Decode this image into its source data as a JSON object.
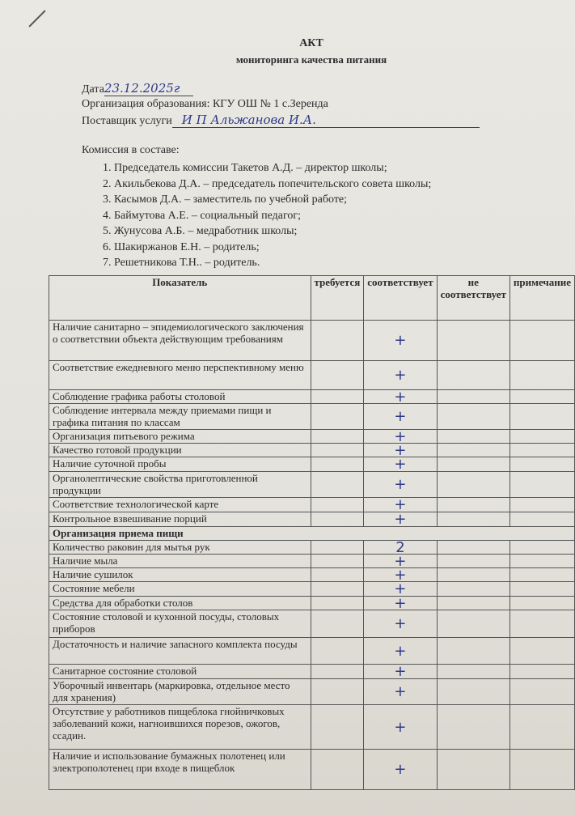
{
  "title": "АКТ",
  "subtitle": "мониторинга качества питания",
  "date_label": "Дата",
  "date_value": "23.12.2025г",
  "organization": "Организация образования: КГУ ОШ № 1 с.Зеренда",
  "supplier_label": "Поставщик услуги",
  "supplier_value": "И П Альжанова И.А.",
  "commission_label": "Комиссия в составе:",
  "commission": [
    "Председатель комиссии Такетов А.Д. – директор школы;",
    "Акильбекова Д.А. – председатель попечительского совета школы;",
    "Касымов Д.А. – заместитель по учебной работе;",
    "Баймутова А.Е. – социальный педагог;",
    "Жунусова А.Б. – медработник школы;",
    "Шакиржанов Е.Н. – родитель;",
    "Решетникова  Т.Н.. – родитель."
  ],
  "table": {
    "headers": [
      "Показатель",
      "требуется",
      "соответствует",
      "не соответствует",
      "примечание"
    ],
    "rows": [
      {
        "label": "Наличие санитарно – эпидемиологического заключения о соответствии объекта действующим требованиям",
        "mark": "+"
      },
      {
        "label": "Соответствие ежедневного меню перспективному меню",
        "mark": "+"
      },
      {
        "label": "Соблюдение графика работы столовой",
        "mark": "+"
      },
      {
        "label": "Соблюдение интервала между приемами пищи и графика питания по классам",
        "mark": "+"
      },
      {
        "label": "Организация питьевого режима",
        "mark": "+"
      },
      {
        "label": "Качество готовой продукции",
        "mark": "+"
      },
      {
        "label": "Наличие суточной пробы",
        "mark": "+"
      },
      {
        "label": "Органолептические свойства приготовленной продукции",
        "mark": "+"
      },
      {
        "label": "Соответствие технологической карте",
        "mark": "+"
      },
      {
        "label": "Контрольное взвешивание порций",
        "mark": "+"
      },
      {
        "label": "Организация приема пищи",
        "section": true
      },
      {
        "label": "Количество раковин для мытья рук",
        "mark": "2"
      },
      {
        "label": "Наличие мыла",
        "mark": "+"
      },
      {
        "label": "Наличие сушилок",
        "mark": "+"
      },
      {
        "label": "Состояние мебели",
        "mark": "+"
      },
      {
        "label": "Средства для обработки столов",
        "mark": "+"
      },
      {
        "label": "Состояние столовой и кухонной посуды, столовых приборов",
        "mark": "+"
      },
      {
        "label": "Достаточность и наличие запасного комплекта посуды",
        "mark": "+"
      },
      {
        "label": "Санитарное состояние столовой",
        "mark": "+"
      },
      {
        "label": "Уборочный инвентарь (маркировка, отдельное место для хранения)",
        "mark": "+"
      },
      {
        "label": "Отсутствие у работников пищеблока гнойничковых заболеваний кожи, нагноившихся порезов, ожогов, ссадин.",
        "mark": "+"
      },
      {
        "label": "Наличие и использование бумажных полотенец или  электрополотенец при входе в пищеблок",
        "mark": "+"
      }
    ]
  }
}
